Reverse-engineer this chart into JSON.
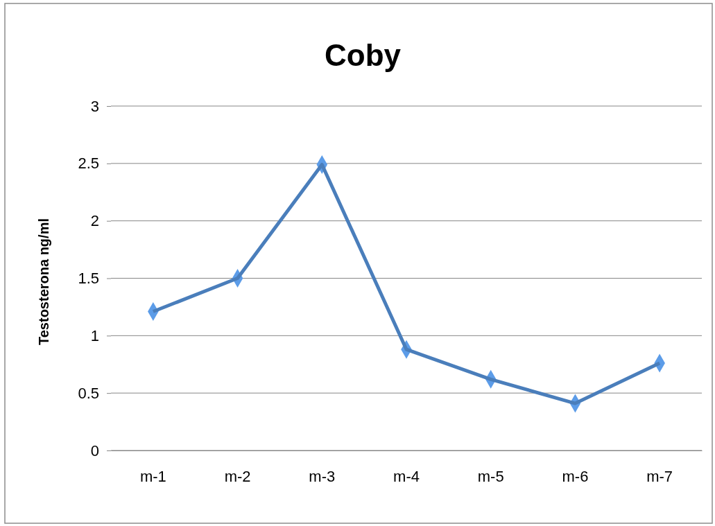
{
  "chart_data": {
    "type": "line",
    "title": "Coby",
    "ylabel": "Testosterona ng/ml",
    "categories": [
      "m-1",
      "m-2",
      "m-3",
      "m-4",
      "m-5",
      "m-6",
      "m-7"
    ],
    "series": [
      {
        "color": "#4a7ebb",
        "values": [
          1.21,
          1.5,
          2.49,
          0.88,
          0.62,
          0.41,
          0.76
        ]
      }
    ],
    "ylim": [
      0,
      3
    ],
    "yticks": [
      0,
      0.5,
      1,
      1.5,
      2,
      2.5,
      3
    ],
    "grid": "y",
    "marker": "diamond"
  }
}
